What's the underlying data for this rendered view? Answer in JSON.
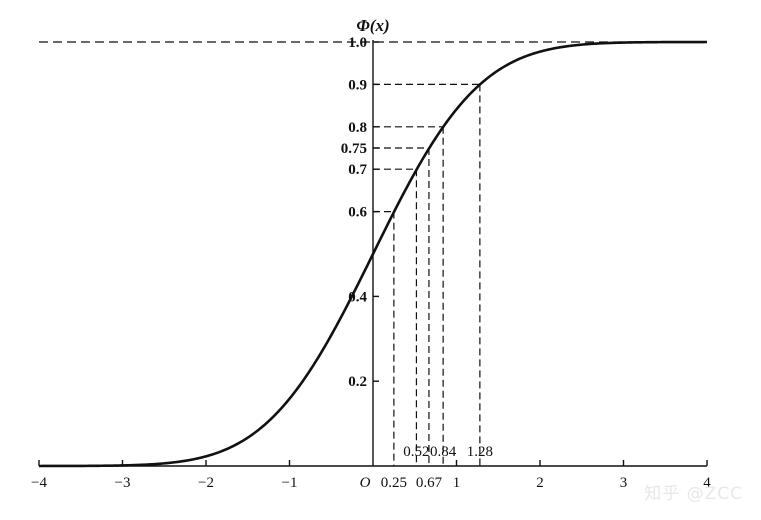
{
  "chart_data": {
    "type": "line",
    "title": "Φ(x)",
    "xlabel": "",
    "ylabel": "",
    "xlim": [
      -4,
      4
    ],
    "ylim": [
      0,
      1.0
    ],
    "series": [
      {
        "values_desc": "",
        "x": [
          -4,
          -3.5,
          -3,
          -2.5,
          -2,
          -1.5,
          -1,
          -0.5,
          0,
          0.25,
          0.52,
          0.67,
          0.84,
          1,
          1.28,
          1.5,
          2,
          2.5,
          3,
          3.5,
          4
        ],
        "y": [
          3e-05,
          0.0002,
          0.0013,
          0.0062,
          0.0228,
          0.0668,
          0.1587,
          0.3085,
          0.5,
          0.5987,
          0.6985,
          0.7486,
          0.7995,
          0.8413,
          0.8997,
          0.9332,
          0.9772,
          0.9938,
          0.9987,
          0.9998,
          0.99997
        ]
      }
    ],
    "x_ticks": [
      {
        "value": -4,
        "label": "−4"
      },
      {
        "value": -3,
        "label": "−3"
      },
      {
        "value": -2,
        "label": "−2"
      },
      {
        "value": -1,
        "label": "−1"
      },
      {
        "value": 2,
        "label": "2"
      },
      {
        "value": 3,
        "label": "3"
      },
      {
        "value": 4,
        "label": "4"
      }
    ],
    "origin_label": "O",
    "y_ticks": [
      {
        "value": 0.2,
        "label": "0.2"
      },
      {
        "value": 0.4,
        "label": "0.4"
      },
      {
        "value": 0.6,
        "label": "0.6"
      },
      {
        "value": 0.7,
        "label": "0.7"
      },
      {
        "value": 0.75,
        "label": "0.75"
      },
      {
        "value": 0.8,
        "label": "0.8"
      },
      {
        "value": 0.9,
        "label": "0.9"
      },
      {
        "value": 1.0,
        "label": "1.0"
      }
    ],
    "quantile_markers": [
      {
        "x": 0.25,
        "y": 0.6,
        "label": "0.25",
        "label_row": "bottom"
      },
      {
        "x": 0.52,
        "y": 0.7,
        "label": "0.52",
        "label_row": "upper"
      },
      {
        "x": 0.67,
        "y": 0.75,
        "label": "0.67",
        "label_row": "bottom"
      },
      {
        "x": 0.84,
        "y": 0.8,
        "label": "0.84",
        "label_row": "upper"
      },
      {
        "x": 1.28,
        "y": 0.9,
        "label": "1.28",
        "label_row": "upper"
      }
    ],
    "extra_x_label": {
      "value": 1,
      "label": "1"
    },
    "asymptote_y": 1.0,
    "grid": false,
    "legend": "none"
  },
  "watermark": "知乎 @ZCC"
}
